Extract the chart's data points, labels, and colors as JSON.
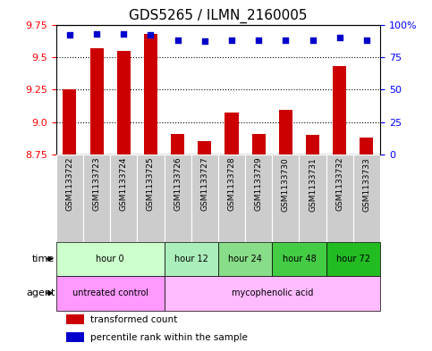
{
  "title": "GDS5265 / ILMN_2160005",
  "samples": [
    "GSM1133722",
    "GSM1133723",
    "GSM1133724",
    "GSM1133725",
    "GSM1133726",
    "GSM1133727",
    "GSM1133728",
    "GSM1133729",
    "GSM1133730",
    "GSM1133731",
    "GSM1133732",
    "GSM1133733"
  ],
  "bar_values": [
    9.25,
    9.57,
    9.55,
    9.68,
    8.91,
    8.85,
    9.07,
    8.91,
    9.09,
    8.9,
    9.43,
    8.88
  ],
  "percentile_values": [
    92,
    93,
    93,
    92,
    88,
    87,
    88,
    88,
    88,
    88,
    90,
    88
  ],
  "ylim_left": [
    8.75,
    9.75
  ],
  "ylim_right": [
    0,
    100
  ],
  "yticks_left": [
    8.75,
    9.0,
    9.25,
    9.5,
    9.75
  ],
  "yticks_right": [
    0,
    25,
    50,
    75,
    100
  ],
  "bar_color": "#cc0000",
  "dot_color": "#0000cc",
  "bar_bottom": 8.75,
  "time_groups": [
    {
      "label": "hour 0",
      "start": 0,
      "end": 4,
      "color": "#ccffcc"
    },
    {
      "label": "hour 12",
      "start": 4,
      "end": 6,
      "color": "#aaeebb"
    },
    {
      "label": "hour 24",
      "start": 6,
      "end": 8,
      "color": "#88dd88"
    },
    {
      "label": "hour 48",
      "start": 8,
      "end": 10,
      "color": "#44cc44"
    },
    {
      "label": "hour 72",
      "start": 10,
      "end": 12,
      "color": "#22bb22"
    }
  ],
  "agent_groups": [
    {
      "label": "untreated control",
      "start": 0,
      "end": 4,
      "color": "#ff99ff"
    },
    {
      "label": "mycophenolic acid",
      "start": 4,
      "end": 12,
      "color": "#ffbbff"
    }
  ],
  "legend_items": [
    {
      "label": "transformed count",
      "color": "#cc0000"
    },
    {
      "label": "percentile rank within the sample",
      "color": "#0000cc"
    }
  ],
  "bg_color": "#ffffff",
  "tick_bg": "#cccccc",
  "font_size_title": 11,
  "font_size_ticks": 8,
  "font_size_sample": 6.5
}
